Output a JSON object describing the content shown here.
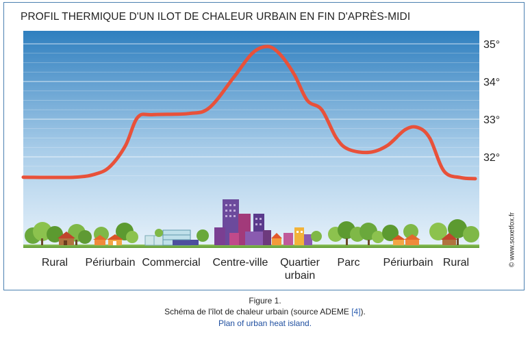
{
  "chart_data": {
    "type": "line",
    "title": "PROFIL THERMIQUE D'UN ILOT DE CHALEUR URBAIN EN FIN D'APRÈS-MIDI",
    "categories": [
      "Rural",
      "Périurbain",
      "Commercial",
      "Centre-ville",
      "Quartier urbain",
      "Parc",
      "Périurbain",
      "Rural"
    ],
    "category_lines": [
      [
        "Rural"
      ],
      [
        "Périurbain"
      ],
      [
        "Commercial"
      ],
      [
        "Centre-ville"
      ],
      [
        "Quartier",
        "urbain"
      ],
      [
        "Parc"
      ],
      [
        "Périurbain"
      ],
      [
        "Rural"
      ]
    ],
    "y_ticks": [
      32,
      33,
      34,
      35
    ],
    "y_tick_labels": [
      "32°",
      "33°",
      "34°",
      "35°"
    ],
    "ylim": [
      31.5,
      35.3
    ],
    "grid": true,
    "line_color": "#e8513a",
    "sky_top_color": "#2f7fbf",
    "sky_bottom_color": "#e6f1fa",
    "series": [
      {
        "values": [
          [
            0.0,
            31.46
          ],
          [
            0.35,
            31.46
          ],
          [
            0.75,
            31.55
          ],
          [
            1.0,
            31.75
          ],
          [
            1.25,
            32.3
          ],
          [
            1.45,
            33.05
          ],
          [
            1.7,
            33.12
          ],
          [
            2.25,
            33.15
          ],
          [
            2.55,
            33.3
          ],
          [
            2.9,
            34.1
          ],
          [
            3.2,
            34.75
          ],
          [
            3.45,
            34.93
          ],
          [
            3.65,
            34.75
          ],
          [
            3.9,
            34.2
          ],
          [
            4.15,
            33.5
          ],
          [
            4.45,
            33.25
          ],
          [
            4.75,
            32.5
          ],
          [
            5.0,
            32.2
          ],
          [
            5.35,
            32.12
          ],
          [
            5.65,
            32.3
          ],
          [
            5.95,
            32.72
          ],
          [
            6.2,
            32.78
          ],
          [
            6.45,
            32.5
          ],
          [
            6.75,
            31.62
          ],
          [
            7.1,
            31.45
          ],
          [
            7.4,
            31.42
          ]
        ]
      }
    ]
  },
  "watermark": "© www.soxetfox.fr",
  "caption": {
    "figure_label": "Figure 1.",
    "french_text": "Schéma de l'îlot de chaleur urbain (source ADEME ",
    "french_ref": "[4]",
    "french_end": ").",
    "english_text": "Plan of urban heat island."
  }
}
